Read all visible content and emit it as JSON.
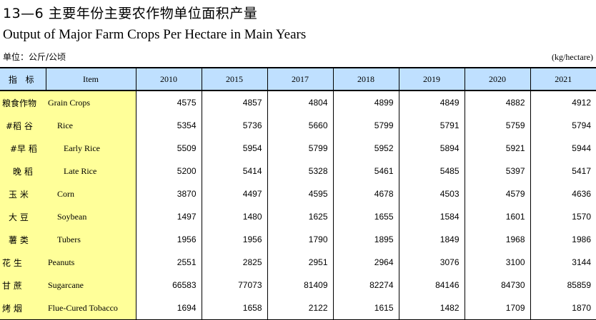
{
  "title_cn": "13—6 主要年份主要农作物单位面积产量",
  "title_en": "Output of Major Farm Crops Per Hectare in Main Years",
  "unit_cn": "单位：公斤/公顷",
  "unit_en": "(kg/hectare)",
  "header": {
    "item_cn": "指 标",
    "item_en": "Item",
    "years": [
      "2010",
      "2015",
      "2017",
      "2018",
      "2019",
      "2020",
      "2021"
    ]
  },
  "rows": [
    {
      "cn": "粮食作物",
      "en": "Grain Crops",
      "values": [
        "4575",
        "4857",
        "4804",
        "4899",
        "4849",
        "4882",
        "4912"
      ]
    },
    {
      "cn": "#稻 谷",
      "en": "Rice",
      "values": [
        "5354",
        "5736",
        "5660",
        "5799",
        "5791",
        "5759",
        "5794"
      ]
    },
    {
      "cn": "#早 稻",
      "en": "Early Rice",
      "values": [
        "5509",
        "5954",
        "5799",
        "5952",
        "5894",
        "5921",
        "5944"
      ]
    },
    {
      "cn": "晚 稻",
      "en": "Late Rice",
      "values": [
        "5200",
        "5414",
        "5328",
        "5461",
        "5485",
        "5397",
        "5417"
      ]
    },
    {
      "cn": "玉 米",
      "en": "Corn",
      "values": [
        "3870",
        "4497",
        "4595",
        "4678",
        "4503",
        "4579",
        "4636"
      ]
    },
    {
      "cn": "大 豆",
      "en": "Soybean",
      "values": [
        "1497",
        "1480",
        "1625",
        "1655",
        "1584",
        "1601",
        "1570"
      ]
    },
    {
      "cn": "薯 类",
      "en": "Tubers",
      "values": [
        "1956",
        "1956",
        "1790",
        "1895",
        "1849",
        "1968",
        "1986"
      ]
    },
    {
      "cn": "花 生",
      "en": "Peanuts",
      "values": [
        "2551",
        "2825",
        "2951",
        "2964",
        "3076",
        "3100",
        "3144"
      ]
    },
    {
      "cn": "甘 蔗",
      "en": "Sugarcane",
      "values": [
        "66583",
        "77073",
        "81409",
        "82274",
        "84146",
        "84730",
        "85859"
      ]
    },
    {
      "cn": "烤 烟",
      "en": "Flue-Cured Tobacco",
      "values": [
        "1694",
        "1658",
        "2122",
        "1615",
        "1482",
        "1709",
        "1870"
      ]
    }
  ]
}
